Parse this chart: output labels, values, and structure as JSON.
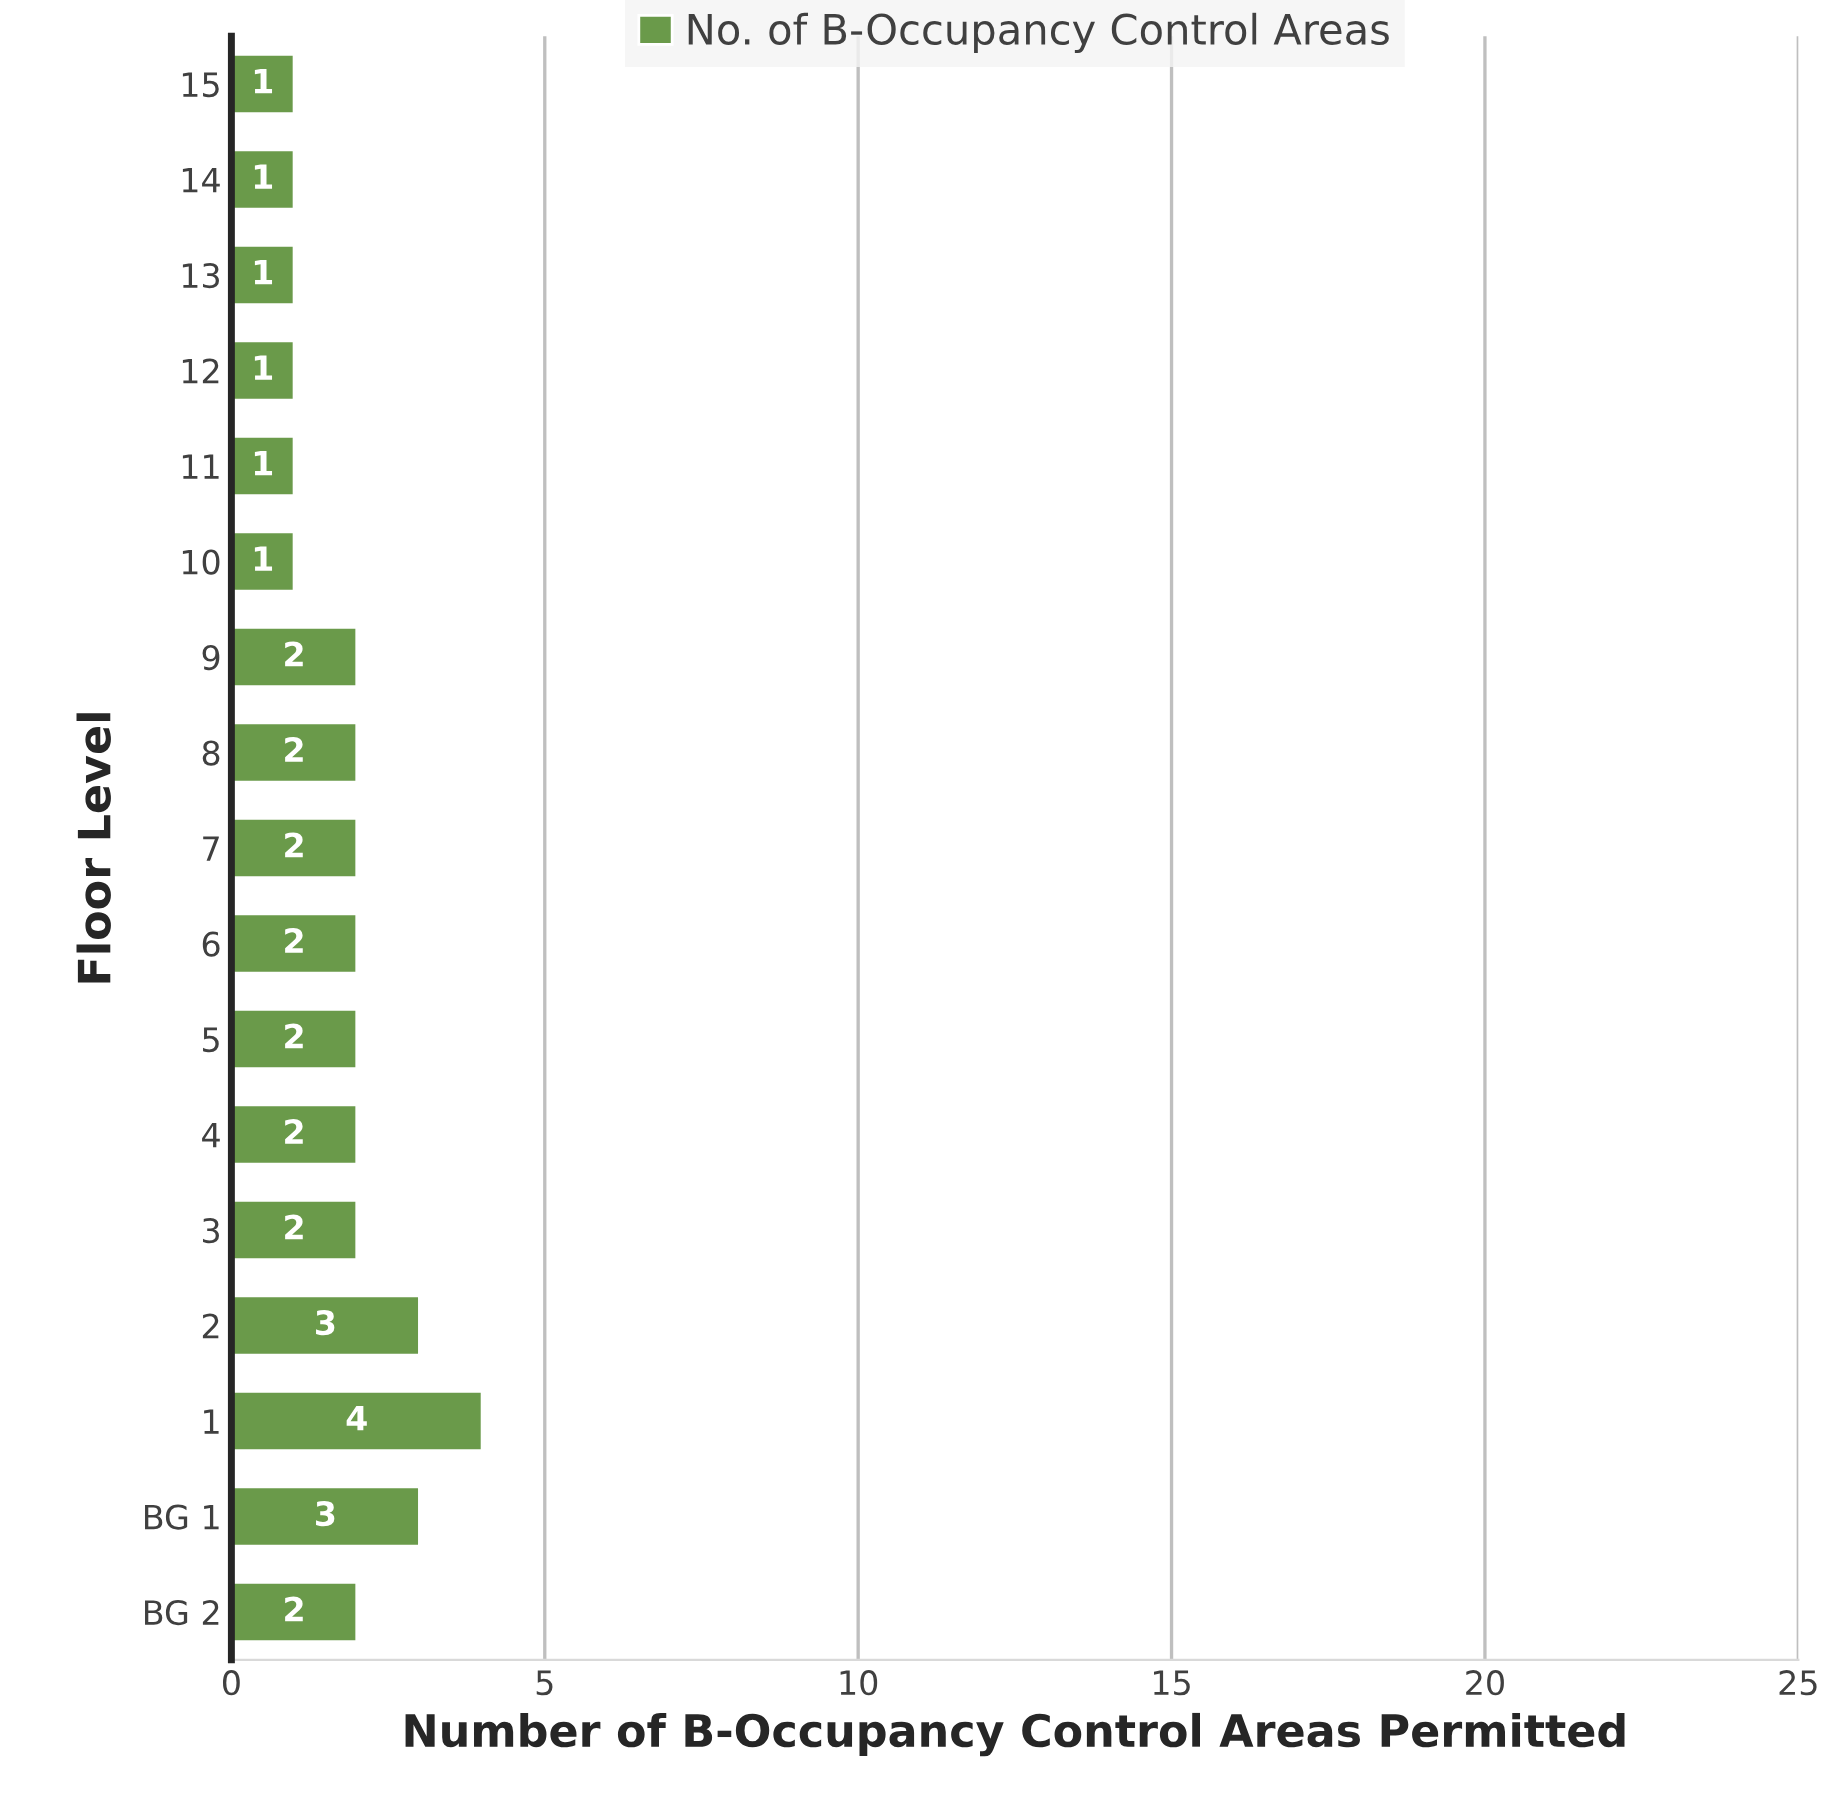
{
  "chart_data": {
    "type": "bar",
    "orientation": "horizontal",
    "xlabel": "Number of B-Occupancy Control Areas Permitted",
    "ylabel": "Floor Level",
    "categories": [
      "15",
      "14",
      "13",
      "12",
      "11",
      "10",
      "9",
      "8",
      "7",
      "6",
      "5",
      "4",
      "3",
      "2",
      "1",
      "BG 1",
      "BG 2"
    ],
    "series": [
      {
        "name": "No. of B-Occupancy Control Areas",
        "color": "#6a9a4a",
        "values": [
          1,
          1,
          1,
          1,
          1,
          1,
          2,
          2,
          2,
          2,
          2,
          2,
          2,
          3,
          4,
          3,
          2
        ]
      }
    ],
    "xlim": [
      0,
      25
    ],
    "xticks": [
      0,
      5,
      10,
      15,
      20,
      25
    ],
    "grid": "x",
    "legend": "top",
    "data_labels": true
  }
}
